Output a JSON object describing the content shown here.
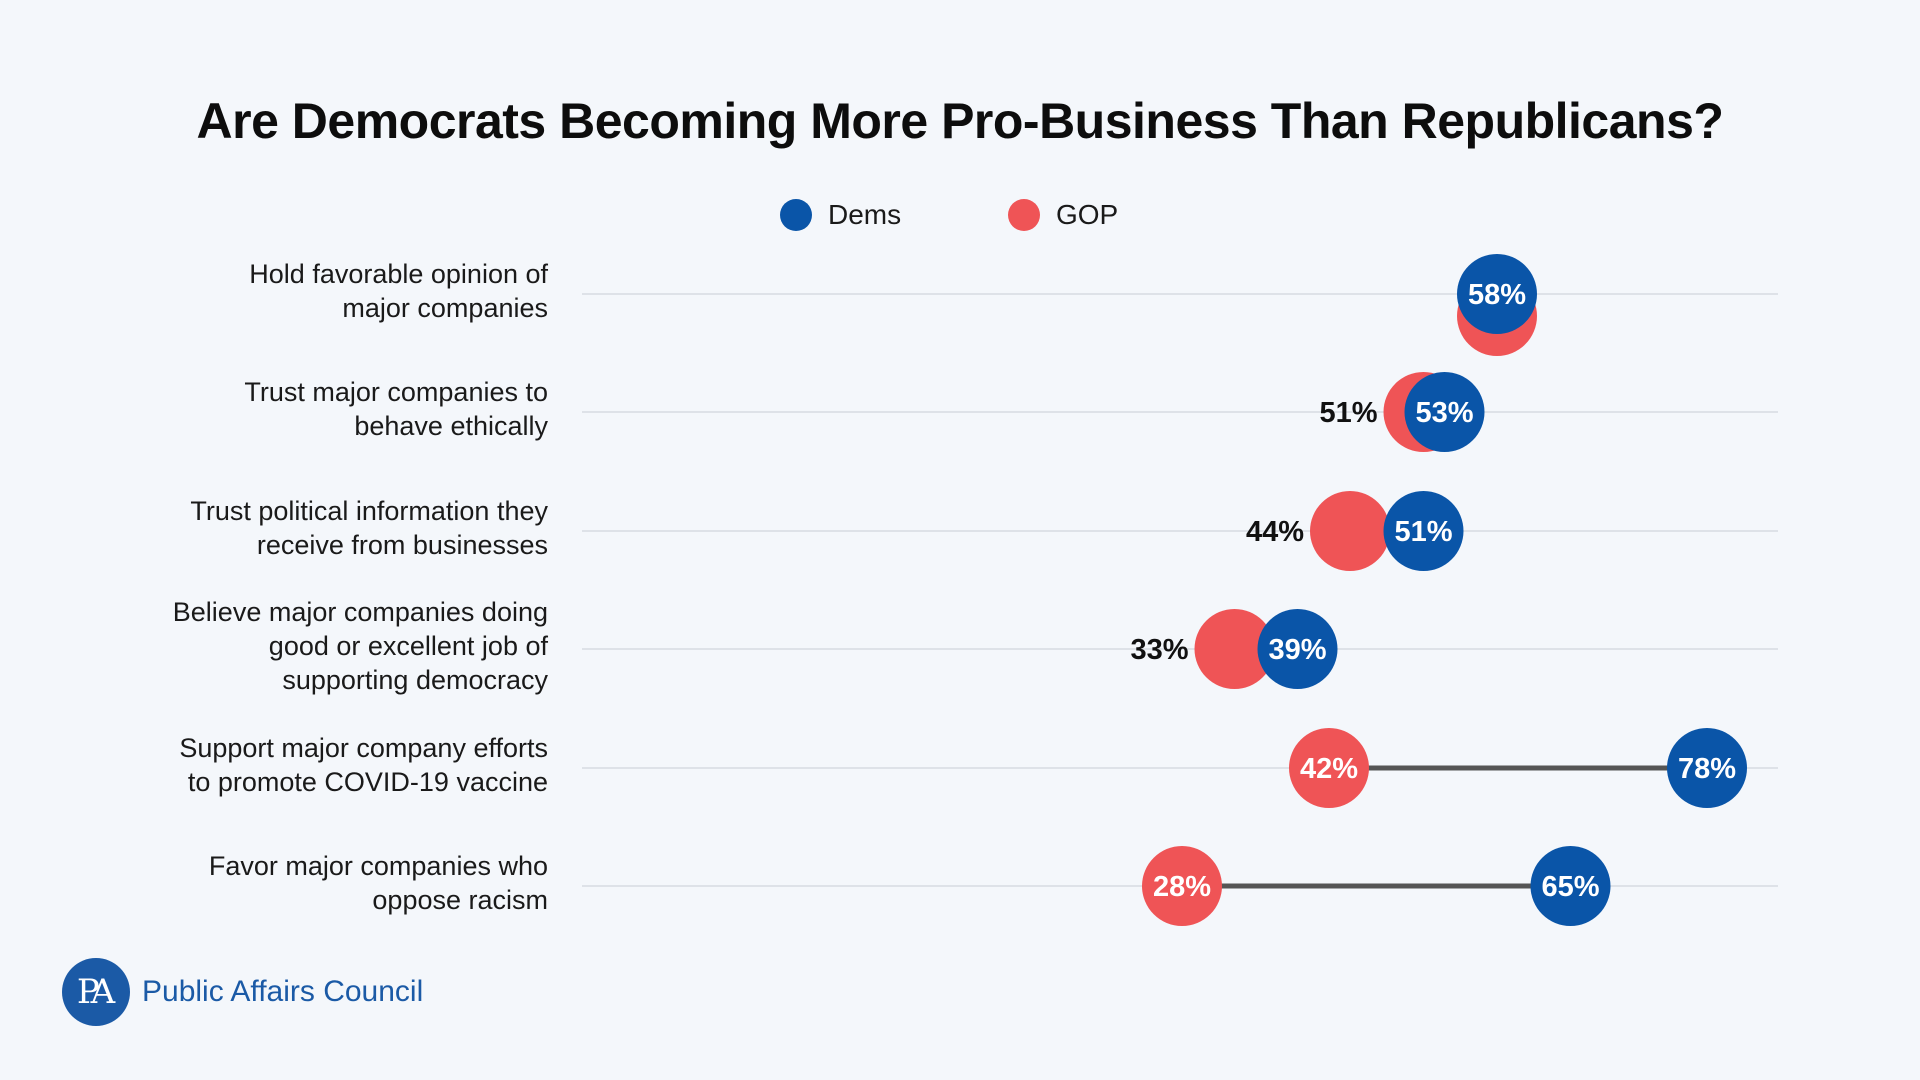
{
  "title": "Are Democrats Becoming More Pro-Business Than Republicans?",
  "legend": {
    "dems": {
      "label": "Dems",
      "color": "#0a55a8"
    },
    "gop": {
      "label": "GOP",
      "color": "#ef5456"
    }
  },
  "logo": {
    "mark": "PA",
    "text": "Public Affairs Council"
  },
  "colors": {
    "background": "#f4f7fb",
    "connector": "#555555",
    "gridline": "#d6dbe2",
    "dems": "#0a55a8",
    "gop": "#ef5456"
  },
  "chart_data": {
    "type": "dumbbell",
    "title": "Are Democrats Becoming More Pro-Business Than Republicans?",
    "xlabel": "",
    "ylabel": "",
    "xlim": [
      0,
      100
    ],
    "grid": "horizontal row lines",
    "legend_position": "top-center",
    "categories": [
      [
        "Hold favorable opinion of",
        "major companies"
      ],
      [
        "Trust major companies to",
        "behave ethically"
      ],
      [
        "Trust political information they",
        "receive from businesses"
      ],
      [
        "Believe major companies doing",
        "good or excellent job of",
        "supporting democracy"
      ],
      [
        "Support major company efforts",
        "to promote COVID-19 vaccine"
      ],
      [
        "Favor major companies who",
        "oppose racism"
      ]
    ],
    "series": [
      {
        "name": "Dems",
        "values": [
          58,
          53,
          51,
          39,
          78,
          65
        ],
        "labels": [
          "58%",
          "53%",
          "51%",
          "39%",
          "78%",
          "65%"
        ]
      },
      {
        "name": "GOP",
        "values": [
          58,
          51,
          44,
          33,
          42,
          28
        ],
        "labels": [
          "",
          "51%",
          "44%",
          "33%",
          "42%",
          "28%"
        ]
      }
    ]
  }
}
